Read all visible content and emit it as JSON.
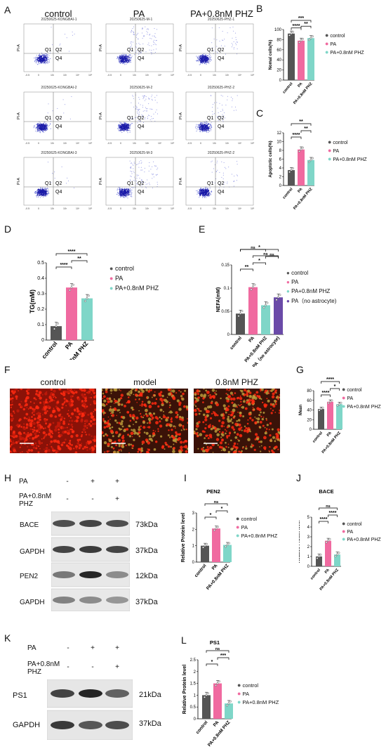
{
  "panels": {
    "A": "A",
    "B": "B",
    "C": "C",
    "D": "D",
    "E": "E",
    "F": "F",
    "G": "G",
    "H": "H",
    "I": "I",
    "J": "J",
    "K": "K",
    "L": "L"
  },
  "colors": {
    "control": "#555555",
    "PA": "#f06aa0",
    "PHZ": "#7fd6c8",
    "astro": "#6a4aa8",
    "gate": "#888888"
  },
  "flow": {
    "group_titles": [
      "control",
      "PA",
      "PA+0.8nM PHZ"
    ],
    "sample_titles": [
      [
        "20250625-KONGBAI-1",
        "20250625-M-1",
        "20250625-PHZ-1"
      ],
      [
        "20250625-KONGBAI-2",
        "20250625-M-2",
        "20250625-PHZ-2"
      ],
      [
        "20250625-KONGBAI-3",
        "20250625-M-3",
        "20250625-PHZ-2"
      ]
    ],
    "quadrants": [
      "Q1",
      "Q2",
      "Q4"
    ],
    "ylabel": "PI-A",
    "xticks": [
      "-0.5",
      "0",
      "10²",
      "10³",
      "10⁴",
      "10⁵"
    ]
  },
  "legend3": [
    "control",
    "PA",
    "PA+0.8nM PHZ"
  ],
  "legend4": [
    "control",
    "PA",
    "PA+0.8nM PHZ",
    "PA（no astrocyte)"
  ],
  "micro": {
    "titles": [
      "control",
      "model",
      "0.8nM PHZ"
    ]
  },
  "wb": {
    "H": {
      "row_labels": [
        "PA",
        "PA+0.8nM PHZ"
      ],
      "lanes": [
        [
          "-",
          "+",
          "+"
        ],
        [
          "-",
          "-",
          "+"
        ]
      ],
      "bands": [
        "BACE",
        "GAPDH",
        "PEN2",
        "GAPDH"
      ],
      "kda": [
        "73kDa",
        "37kDa",
        "12kDa",
        "37kDa"
      ]
    },
    "K": {
      "row_labels": [
        "PA",
        "PA+0.8nM PHZ"
      ],
      "lanes": [
        [
          "-",
          "+",
          "+"
        ],
        [
          "-",
          "-",
          "+"
        ]
      ],
      "bands": [
        "PS1",
        "GAPDH"
      ],
      "kda": [
        "21kDa",
        "37kDa"
      ]
    }
  },
  "chart_data": [
    {
      "id": "B",
      "type": "bar",
      "categories": [
        "control",
        "PA",
        "PA+0.8nM PHZ"
      ],
      "values": [
        92,
        78,
        83
      ],
      "ylabel": "Nomal cells(%)",
      "ylim": [
        0,
        100
      ],
      "yticks": [
        0,
        20,
        40,
        60,
        80,
        100
      ],
      "sig": [
        {
          "a": 0,
          "b": 1,
          "text": "****"
        },
        {
          "a": 1,
          "b": 2,
          "text": "**"
        },
        {
          "a": 0,
          "b": 2,
          "text": "***"
        }
      ]
    },
    {
      "id": "C",
      "type": "bar",
      "categories": [
        "control",
        "PA",
        "PA+0.8nM PHZ"
      ],
      "values": [
        3.5,
        8.2,
        5.8
      ],
      "ylabel": "Apoptotic cells(%)",
      "ylim": [
        0,
        12
      ],
      "yticks": [
        0,
        2,
        4,
        6,
        8,
        10,
        12
      ],
      "sig": [
        {
          "a": 0,
          "b": 1,
          "text": "****"
        },
        {
          "a": 1,
          "b": 2,
          "text": "**"
        },
        {
          "a": 0,
          "b": 2,
          "text": "**"
        }
      ]
    },
    {
      "id": "D",
      "type": "bar",
      "categories": [
        "control",
        "PA",
        "PA+0.8nM PHZ"
      ],
      "values": [
        0.09,
        0.34,
        0.27
      ],
      "ylabel": "TG(mM)",
      "ylim": [
        0,
        0.5
      ],
      "yticks": [
        0.0,
        0.1,
        0.2,
        0.3,
        0.4,
        0.5
      ],
      "sig": [
        {
          "a": 0,
          "b": 1,
          "text": "****"
        },
        {
          "a": 1,
          "b": 2,
          "text": "**"
        },
        {
          "a": 0,
          "b": 2,
          "text": "****"
        }
      ]
    },
    {
      "id": "E",
      "type": "bar",
      "categories": [
        "control",
        "PA",
        "PA+0.8nM PHZ",
        "PA（no astrocyte)"
      ],
      "values": [
        0.045,
        0.102,
        0.063,
        0.08
      ],
      "ylabel": "NEFA(mM)",
      "ylim": [
        0,
        0.15
      ],
      "yticks": [
        0.0,
        0.05,
        0.1,
        0.15
      ],
      "sig": [
        {
          "a": 0,
          "b": 1,
          "text": "**"
        },
        {
          "a": 1,
          "b": 2,
          "text": "*"
        },
        {
          "a": 2,
          "b": 3,
          "text": "ns"
        },
        {
          "a": 1,
          "b": 3,
          "text": "ns"
        },
        {
          "a": 0,
          "b": 2,
          "text": "ns"
        },
        {
          "a": 0,
          "b": 3,
          "text": "*"
        }
      ]
    },
    {
      "id": "G",
      "type": "bar",
      "categories": [
        "control",
        "PA",
        "PA+0.8nM PHZ"
      ],
      "values": [
        42,
        57,
        52
      ],
      "ylabel": "Mean",
      "ylim": [
        0,
        80
      ],
      "yticks": [
        0,
        20,
        40,
        60,
        80
      ],
      "sig": [
        {
          "a": 0,
          "b": 1,
          "text": "****"
        },
        {
          "a": 1,
          "b": 2,
          "text": "*"
        },
        {
          "a": 0,
          "b": 2,
          "text": "****"
        }
      ]
    },
    {
      "id": "I",
      "type": "bar",
      "categories": [
        "control",
        "PA",
        "PA+0.8nM PHZ"
      ],
      "values": [
        1.0,
        2.05,
        1.05
      ],
      "ylabel": "Relative Protein level",
      "ylim": [
        0,
        3
      ],
      "yticks": [
        0,
        1,
        2,
        3
      ],
      "title": "PEN2",
      "sig": [
        {
          "a": 0,
          "b": 1,
          "text": "*"
        },
        {
          "a": 1,
          "b": 2,
          "text": "*"
        },
        {
          "a": 0,
          "b": 2,
          "text": "ns"
        }
      ]
    },
    {
      "id": "J",
      "type": "bar",
      "categories": [
        "control",
        "PA",
        "PA+0.8nM PHZ"
      ],
      "values": [
        1.0,
        2.6,
        1.2
      ],
      "ylabel": "Relative Protein level",
      "ylim": [
        0,
        5
      ],
      "yticks": [
        0,
        1,
        2,
        3,
        4,
        5
      ],
      "title": "BACE",
      "sig": [
        {
          "a": 0,
          "b": 1,
          "text": "****"
        },
        {
          "a": 1,
          "b": 2,
          "text": "****"
        },
        {
          "a": 0,
          "b": 2,
          "text": "ns"
        }
      ]
    },
    {
      "id": "L",
      "type": "bar",
      "categories": [
        "control",
        "PA",
        "PA+0.8nM PHZ"
      ],
      "values": [
        1.0,
        1.5,
        0.65
      ],
      "ylabel": "Relative Protein level",
      "ylim": [
        0,
        2.5
      ],
      "yticks": [
        0.0,
        0.5,
        1.0,
        1.5,
        2.0,
        2.5
      ],
      "title": "PS1",
      "sig": [
        {
          "a": 0,
          "b": 1,
          "text": "*"
        },
        {
          "a": 1,
          "b": 2,
          "text": "***"
        },
        {
          "a": 0,
          "b": 2,
          "text": "ns"
        }
      ]
    }
  ]
}
